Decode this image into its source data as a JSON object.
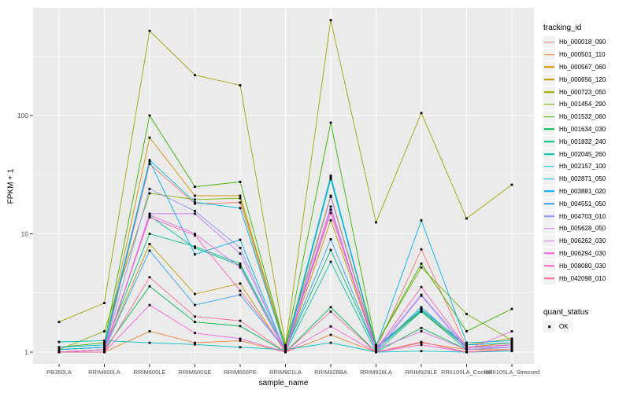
{
  "colors": {
    "page_bg": "#FFFFFF",
    "panel_bg": "#EBEBEB",
    "grid": "#FFFFFF",
    "legend_key_bg": "#F2F2F2",
    "tick_text": "#4D4D4D",
    "title_text": "#000000",
    "marker": "#000000",
    "tick_mark": "#333333"
  },
  "chart_data": {
    "type": "line",
    "title": "",
    "xlabel": "sample_name",
    "ylabel": "FPKM + 1",
    "scale": "log10",
    "grid": "on",
    "legend_position": "right",
    "legend_title": "tracking_id",
    "point_legend": {
      "title": "quant_status",
      "label": "OK"
    },
    "marker": "black-square",
    "y_ticks": [
      1,
      10,
      100
    ],
    "ylim": [
      0.75,
      815
    ],
    "x_categories": [
      "PB350LA",
      "RRIM600LA",
      "RRIM600LE",
      "RRIM600SE",
      "RRIM600PE",
      "RRIM901LA",
      "RRIM928BA",
      "RRIM928LA",
      "RRIM928LE",
      "RRII105LA_Control",
      "RRII105LA_Stressed"
    ],
    "series": [
      {
        "name": "Hb_000018_090",
        "color": "#F8766D",
        "values": [
          1.0,
          1.05,
          39,
          18,
          18.4,
          1.05,
          16,
          1.05,
          7.4,
          1.1,
          1.1
        ]
      },
      {
        "name": "Hb_000501_110",
        "color": "#EA8331",
        "values": [
          1.0,
          1.0,
          1.5,
          1.2,
          1.25,
          1.0,
          1.4,
          1.0,
          1.2,
          1.05,
          1.05
        ]
      },
      {
        "name": "Hb_000567_060",
        "color": "#D89000",
        "values": [
          1.05,
          1.1,
          65,
          21,
          21,
          1.1,
          21,
          1.1,
          2.2,
          1.1,
          1.2
        ]
      },
      {
        "name": "Hb_000656_120",
        "color": "#C09B00",
        "values": [
          1.0,
          1.05,
          8.2,
          3.1,
          3.8,
          1.0,
          13,
          1.05,
          2.3,
          1.15,
          1.3
        ]
      },
      {
        "name": "Hb_000723_050",
        "color": "#A3A500",
        "values": [
          1.8,
          2.6,
          520,
          220,
          180,
          1.15,
          640,
          12.5,
          105,
          13.5,
          26
        ]
      },
      {
        "name": "Hb_001454_290",
        "color": "#7CAE00",
        "values": [
          1.05,
          1.5,
          22,
          19.5,
          20,
          1.1,
          30,
          1.15,
          5.2,
          2.1,
          1.26
        ]
      },
      {
        "name": "Hb_001532_060",
        "color": "#39B600",
        "values": [
          1.1,
          1.2,
          100,
          25,
          27.5,
          1.1,
          87,
          1.15,
          5.6,
          1.5,
          2.32
        ]
      },
      {
        "name": "Hb_001634_030",
        "color": "#00BB4E",
        "values": [
          1.0,
          1.05,
          3.6,
          1.8,
          1.66,
          1.0,
          2.4,
          1.0,
          1.6,
          1.05,
          1.1
        ]
      },
      {
        "name": "Hb_001832_240",
        "color": "#00BF7D",
        "values": [
          1.05,
          1.1,
          10,
          7.8,
          5.6,
          1.05,
          7.3,
          1.05,
          2.25,
          1.1,
          1.15
        ]
      },
      {
        "name": "Hb_002045_260",
        "color": "#00C1A3",
        "values": [
          1.0,
          1.0,
          14.2,
          7.6,
          5.4,
          1.0,
          5.8,
          1.0,
          2.2,
          1.05,
          1.1
        ]
      },
      {
        "name": "Hb_002157_100",
        "color": "#00BFC4",
        "values": [
          1.22,
          1.25,
          1.2,
          1.16,
          1.1,
          1.05,
          1.2,
          1.0,
          1.02,
          1.0,
          1.02
        ]
      },
      {
        "name": "Hb_002871_050",
        "color": "#00BAE0",
        "values": [
          1.1,
          1.15,
          42,
          18.5,
          16.5,
          1.05,
          31,
          1.1,
          2.3,
          1.15,
          1.2
        ]
      },
      {
        "name": "Hb_003881_020",
        "color": "#00B0F6",
        "values": [
          1.05,
          1.1,
          41,
          6.7,
          8.9,
          1.0,
          29,
          1.1,
          13,
          1.2,
          1.25
        ]
      },
      {
        "name": "Hb_004551_050",
        "color": "#35A2FF",
        "values": [
          1.0,
          1.05,
          7.2,
          2.5,
          3.05,
          1.05,
          9.0,
          1.05,
          2.4,
          1.1,
          1.15
        ]
      },
      {
        "name": "Hb_004703_010",
        "color": "#9590FF",
        "values": [
          1.0,
          1.05,
          24,
          15.6,
          7.6,
          1.0,
          20.5,
          1.05,
          3.05,
          1.1,
          1.1
        ]
      },
      {
        "name": "Hb_005628_050",
        "color": "#C77CFF",
        "values": [
          1.0,
          1.0,
          14.8,
          14.8,
          6.8,
          1.05,
          17,
          1.0,
          3.0,
          1.05,
          1.1
        ]
      },
      {
        "name": "Hb_006262_030",
        "color": "#E76BF3",
        "values": [
          1.0,
          1.0,
          14.5,
          10,
          5.2,
          1.0,
          16,
          1.05,
          1.5,
          1.05,
          1.5
        ]
      },
      {
        "name": "Hb_006294_030",
        "color": "#FA62DB",
        "values": [
          1.0,
          1.0,
          2.5,
          1.45,
          1.3,
          1.0,
          1.65,
          1.0,
          1.15,
          1.0,
          1.05
        ]
      },
      {
        "name": "Hb_008080_030",
        "color": "#FF62BC",
        "values": [
          1.0,
          1.05,
          13.8,
          9.7,
          3.3,
          1.05,
          15,
          1.05,
          3.55,
          1.1,
          1.15
        ]
      },
      {
        "name": "Hb_042098_010",
        "color": "#FF6A98",
        "values": [
          1.0,
          1.0,
          4.3,
          2.0,
          1.84,
          1.0,
          2.2,
          1.0,
          1.22,
          1.0,
          1.05
        ]
      }
    ]
  }
}
